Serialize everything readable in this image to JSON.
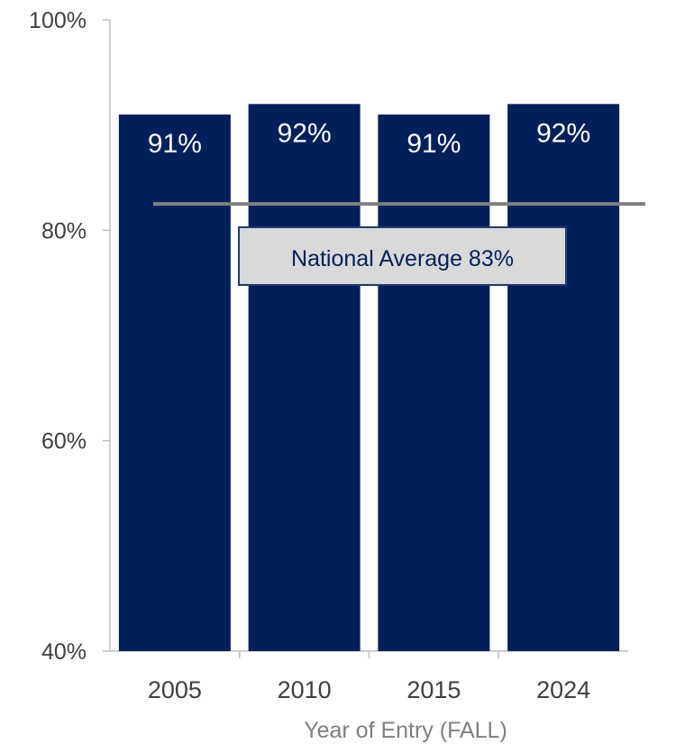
{
  "chart_data": {
    "type": "bar",
    "title": "",
    "xlabel": "Year of Entry (FALL)",
    "ylabel": "",
    "categories": [
      "2005",
      "2010",
      "2015",
      "2024"
    ],
    "values": [
      91,
      92,
      91,
      92
    ],
    "data_labels": [
      "91%",
      "92%",
      "91%",
      "92%"
    ],
    "ylim": [
      40,
      100
    ],
    "y_ticks": [
      40,
      60,
      80,
      100
    ],
    "y_tick_labels": [
      "40%",
      "60%",
      "80%",
      "100%"
    ],
    "grid": false,
    "bar_color": "#00205b",
    "reference_line": {
      "value": 82.5,
      "label": "National Average 83%",
      "color": "#808080",
      "box_fill": "#d9d9d9",
      "box_border": "#1f3a6e",
      "label_color": "#00205b"
    }
  }
}
